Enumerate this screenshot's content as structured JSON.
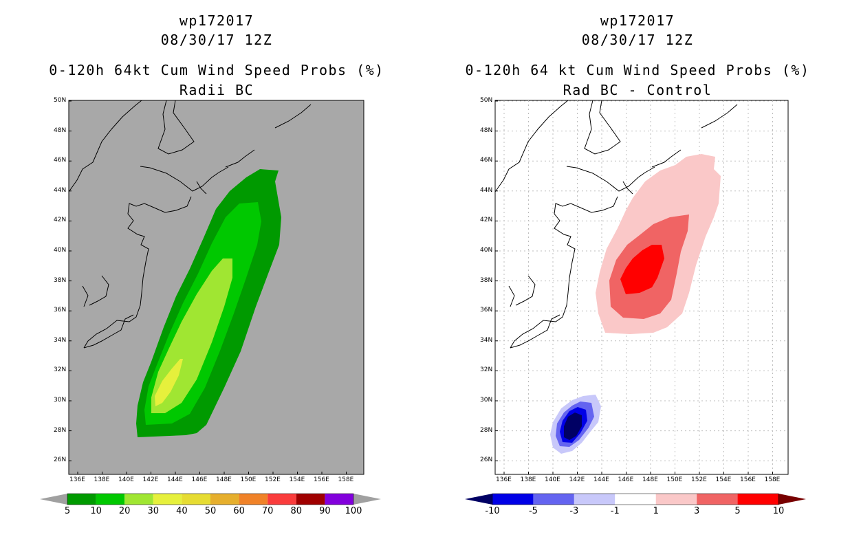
{
  "colors": {
    "sea_gray": "#a8a8a8",
    "green_5": "#009a00",
    "green_10": "#00c800",
    "green_20": "#a0e632",
    "yellow_30": "#e6f03c",
    "blue_10": "#000064",
    "blue_5": "#0000e6",
    "blue_3": "#6464f0",
    "blue_1": "#c8c8fa",
    "red_1": "#fac8c8",
    "red_3": "#f06464",
    "red_5": "#ff0000",
    "red_10": "#780000"
  },
  "left_panel": {
    "storm_id": "wp172017",
    "datetime": "08/30/17 12Z",
    "product": "0-120h 64kt Cum Wind Speed Probs (%)",
    "subtitle": "Radii BC",
    "lat_labels": [
      "50N",
      "48N",
      "46N",
      "44N",
      "42N",
      "40N",
      "38N",
      "36N",
      "34N",
      "32N",
      "30N",
      "28N",
      "26N"
    ],
    "lon_labels": [
      "136E",
      "138E",
      "140E",
      "142E",
      "144E",
      "146E",
      "148E",
      "150E",
      "152E",
      "154E",
      "156E",
      "158E"
    ],
    "colorbar": {
      "labels": [
        "5",
        "10",
        "20",
        "30",
        "40",
        "50",
        "60",
        "70",
        "80",
        "90",
        "100"
      ],
      "colors": [
        "#a0a0a0",
        "#009a00",
        "#00c800",
        "#a0e632",
        "#e6f03c",
        "#e6dc32",
        "#e6af2d",
        "#f08228",
        "#fa3c3c",
        "#a00000",
        "#8200dc",
        "#a0a0a0"
      ]
    }
  },
  "right_panel": {
    "storm_id": "wp172017",
    "datetime": "08/30/17 12Z",
    "product": "0-120h 64 kt Cum Wind Speed Probs (%)",
    "subtitle": "Rad BC - Control",
    "lat_labels": [
      "50N",
      "48N",
      "46N",
      "44N",
      "42N",
      "40N",
      "38N",
      "36N",
      "34N",
      "32N",
      "30N",
      "28N",
      "26N"
    ],
    "lon_labels": [
      "136E",
      "138E",
      "140E",
      "142E",
      "144E",
      "146E",
      "148E",
      "150E",
      "152E",
      "154E",
      "156E",
      "158E"
    ],
    "colorbar": {
      "labels": [
        "-10",
        "-5",
        "-3",
        "-1",
        "1",
        "3",
        "5",
        "10"
      ],
      "colors": [
        "#000064",
        "#0000e6",
        "#6464f0",
        "#c8c8fa",
        "#ffffff",
        "#fac8c8",
        "#f06464",
        "#ff0000",
        "#780000"
      ]
    }
  }
}
